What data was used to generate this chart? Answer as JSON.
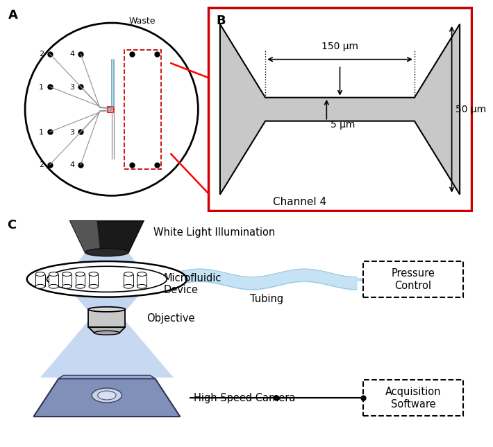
{
  "fig_width": 6.85,
  "fig_height": 6.45,
  "bg_color": "#ffffff",
  "panel_A_label": "A",
  "panel_B_label": "B",
  "panel_C_label": "C",
  "channel_label": "Channel 4",
  "waste_label": "Waste",
  "dim_150": "150 μm",
  "dim_50": "50 μm",
  "dim_5": "5 μm",
  "wli_label": "White Light Illumination",
  "tubing_label": "Tubing",
  "mfd_label": "Microfluidic\nDevice",
  "obj_label": "Objective",
  "hsc_label": "High Speed Camera",
  "pc_label": "Pressure\nControl",
  "acq_label": "Acquisition\nSoftware",
  "gray_ch": "#c8c8c8",
  "black": "#000000",
  "red": "#cc0000",
  "blue_beam": "#b0c8ee",
  "blue_tube": "#c0e0f4",
  "cam_color_top": "#8898cc",
  "cam_color_bot": "#6070a8",
  "obj_color": "#d0d0d0",
  "obj_color2": "#b0b0b0"
}
